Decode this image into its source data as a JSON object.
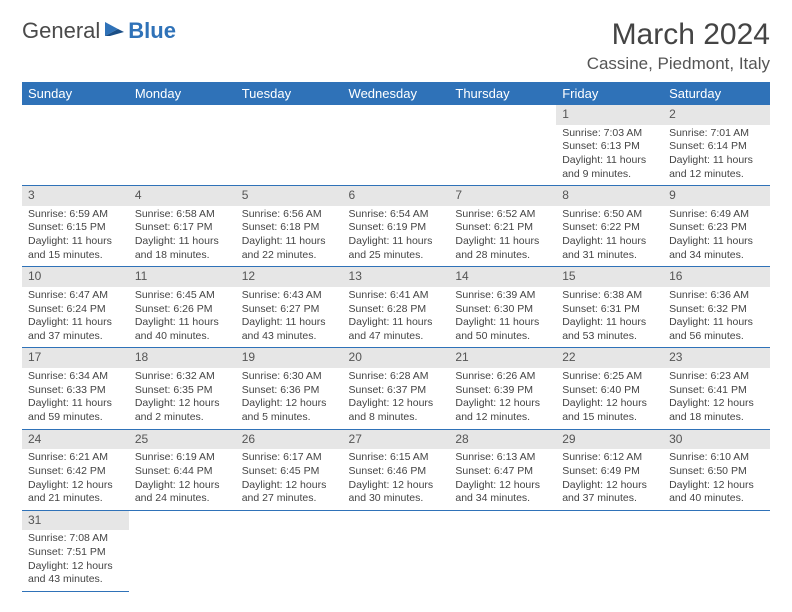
{
  "logo": {
    "word1": "General",
    "word2": "Blue"
  },
  "title": "March 2024",
  "location": "Cassine, Piedmont, Italy",
  "colors": {
    "header_bg": "#2f72b8",
    "header_text": "#ffffff",
    "daynum_bg": "#e6e6e6",
    "rule": "#2f72b8",
    "body_text": "#444444"
  },
  "weekdays": [
    "Sunday",
    "Monday",
    "Tuesday",
    "Wednesday",
    "Thursday",
    "Friday",
    "Saturday"
  ],
  "weeks": [
    [
      null,
      null,
      null,
      null,
      null,
      {
        "n": "1",
        "sr": "Sunrise: 7:03 AM",
        "ss": "Sunset: 6:13 PM",
        "dl": "Daylight: 11 hours and 9 minutes."
      },
      {
        "n": "2",
        "sr": "Sunrise: 7:01 AM",
        "ss": "Sunset: 6:14 PM",
        "dl": "Daylight: 11 hours and 12 minutes."
      }
    ],
    [
      {
        "n": "3",
        "sr": "Sunrise: 6:59 AM",
        "ss": "Sunset: 6:15 PM",
        "dl": "Daylight: 11 hours and 15 minutes."
      },
      {
        "n": "4",
        "sr": "Sunrise: 6:58 AM",
        "ss": "Sunset: 6:17 PM",
        "dl": "Daylight: 11 hours and 18 minutes."
      },
      {
        "n": "5",
        "sr": "Sunrise: 6:56 AM",
        "ss": "Sunset: 6:18 PM",
        "dl": "Daylight: 11 hours and 22 minutes."
      },
      {
        "n": "6",
        "sr": "Sunrise: 6:54 AM",
        "ss": "Sunset: 6:19 PM",
        "dl": "Daylight: 11 hours and 25 minutes."
      },
      {
        "n": "7",
        "sr": "Sunrise: 6:52 AM",
        "ss": "Sunset: 6:21 PM",
        "dl": "Daylight: 11 hours and 28 minutes."
      },
      {
        "n": "8",
        "sr": "Sunrise: 6:50 AM",
        "ss": "Sunset: 6:22 PM",
        "dl": "Daylight: 11 hours and 31 minutes."
      },
      {
        "n": "9",
        "sr": "Sunrise: 6:49 AM",
        "ss": "Sunset: 6:23 PM",
        "dl": "Daylight: 11 hours and 34 minutes."
      }
    ],
    [
      {
        "n": "10",
        "sr": "Sunrise: 6:47 AM",
        "ss": "Sunset: 6:24 PM",
        "dl": "Daylight: 11 hours and 37 minutes."
      },
      {
        "n": "11",
        "sr": "Sunrise: 6:45 AM",
        "ss": "Sunset: 6:26 PM",
        "dl": "Daylight: 11 hours and 40 minutes."
      },
      {
        "n": "12",
        "sr": "Sunrise: 6:43 AM",
        "ss": "Sunset: 6:27 PM",
        "dl": "Daylight: 11 hours and 43 minutes."
      },
      {
        "n": "13",
        "sr": "Sunrise: 6:41 AM",
        "ss": "Sunset: 6:28 PM",
        "dl": "Daylight: 11 hours and 47 minutes."
      },
      {
        "n": "14",
        "sr": "Sunrise: 6:39 AM",
        "ss": "Sunset: 6:30 PM",
        "dl": "Daylight: 11 hours and 50 minutes."
      },
      {
        "n": "15",
        "sr": "Sunrise: 6:38 AM",
        "ss": "Sunset: 6:31 PM",
        "dl": "Daylight: 11 hours and 53 minutes."
      },
      {
        "n": "16",
        "sr": "Sunrise: 6:36 AM",
        "ss": "Sunset: 6:32 PM",
        "dl": "Daylight: 11 hours and 56 minutes."
      }
    ],
    [
      {
        "n": "17",
        "sr": "Sunrise: 6:34 AM",
        "ss": "Sunset: 6:33 PM",
        "dl": "Daylight: 11 hours and 59 minutes."
      },
      {
        "n": "18",
        "sr": "Sunrise: 6:32 AM",
        "ss": "Sunset: 6:35 PM",
        "dl": "Daylight: 12 hours and 2 minutes."
      },
      {
        "n": "19",
        "sr": "Sunrise: 6:30 AM",
        "ss": "Sunset: 6:36 PM",
        "dl": "Daylight: 12 hours and 5 minutes."
      },
      {
        "n": "20",
        "sr": "Sunrise: 6:28 AM",
        "ss": "Sunset: 6:37 PM",
        "dl": "Daylight: 12 hours and 8 minutes."
      },
      {
        "n": "21",
        "sr": "Sunrise: 6:26 AM",
        "ss": "Sunset: 6:39 PM",
        "dl": "Daylight: 12 hours and 12 minutes."
      },
      {
        "n": "22",
        "sr": "Sunrise: 6:25 AM",
        "ss": "Sunset: 6:40 PM",
        "dl": "Daylight: 12 hours and 15 minutes."
      },
      {
        "n": "23",
        "sr": "Sunrise: 6:23 AM",
        "ss": "Sunset: 6:41 PM",
        "dl": "Daylight: 12 hours and 18 minutes."
      }
    ],
    [
      {
        "n": "24",
        "sr": "Sunrise: 6:21 AM",
        "ss": "Sunset: 6:42 PM",
        "dl": "Daylight: 12 hours and 21 minutes."
      },
      {
        "n": "25",
        "sr": "Sunrise: 6:19 AM",
        "ss": "Sunset: 6:44 PM",
        "dl": "Daylight: 12 hours and 24 minutes."
      },
      {
        "n": "26",
        "sr": "Sunrise: 6:17 AM",
        "ss": "Sunset: 6:45 PM",
        "dl": "Daylight: 12 hours and 27 minutes."
      },
      {
        "n": "27",
        "sr": "Sunrise: 6:15 AM",
        "ss": "Sunset: 6:46 PM",
        "dl": "Daylight: 12 hours and 30 minutes."
      },
      {
        "n": "28",
        "sr": "Sunrise: 6:13 AM",
        "ss": "Sunset: 6:47 PM",
        "dl": "Daylight: 12 hours and 34 minutes."
      },
      {
        "n": "29",
        "sr": "Sunrise: 6:12 AM",
        "ss": "Sunset: 6:49 PM",
        "dl": "Daylight: 12 hours and 37 minutes."
      },
      {
        "n": "30",
        "sr": "Sunrise: 6:10 AM",
        "ss": "Sunset: 6:50 PM",
        "dl": "Daylight: 12 hours and 40 minutes."
      }
    ],
    [
      {
        "n": "31",
        "sr": "Sunrise: 7:08 AM",
        "ss": "Sunset: 7:51 PM",
        "dl": "Daylight: 12 hours and 43 minutes."
      },
      null,
      null,
      null,
      null,
      null,
      null
    ]
  ]
}
